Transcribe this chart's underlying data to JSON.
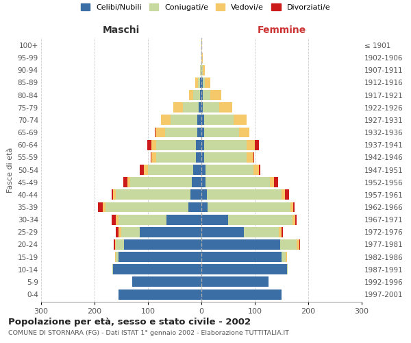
{
  "age_groups": [
    "0-4",
    "5-9",
    "10-14",
    "15-19",
    "20-24",
    "25-29",
    "30-34",
    "35-39",
    "40-44",
    "45-49",
    "50-54",
    "55-59",
    "60-64",
    "65-69",
    "70-74",
    "75-79",
    "80-84",
    "85-89",
    "90-94",
    "95-99",
    "100+"
  ],
  "birth_years": [
    "1997-2001",
    "1992-1996",
    "1987-1991",
    "1982-1986",
    "1977-1981",
    "1972-1976",
    "1967-1971",
    "1962-1966",
    "1957-1961",
    "1952-1956",
    "1947-1951",
    "1942-1946",
    "1937-1941",
    "1932-1936",
    "1927-1931",
    "1922-1926",
    "1917-1921",
    "1912-1916",
    "1907-1911",
    "1902-1906",
    "≤ 1901"
  ],
  "male_celibe": [
    155,
    130,
    165,
    155,
    145,
    115,
    65,
    25,
    20,
    18,
    15,
    10,
    10,
    8,
    8,
    5,
    3,
    2,
    0,
    0,
    0
  ],
  "male_coniugato": [
    0,
    0,
    2,
    5,
    15,
    35,
    90,
    155,
    140,
    115,
    85,
    75,
    75,
    60,
    50,
    30,
    12,
    5,
    2,
    0,
    0
  ],
  "male_vedovo": [
    0,
    0,
    0,
    2,
    2,
    5,
    5,
    5,
    5,
    5,
    8,
    8,
    8,
    18,
    18,
    18,
    8,
    4,
    1,
    0,
    0
  ],
  "male_divorziato": [
    0,
    0,
    0,
    0,
    2,
    5,
    8,
    8,
    3,
    8,
    8,
    2,
    8,
    1,
    0,
    0,
    0,
    0,
    0,
    0,
    0
  ],
  "female_celibe": [
    150,
    125,
    160,
    150,
    148,
    80,
    50,
    12,
    10,
    8,
    8,
    5,
    5,
    5,
    5,
    3,
    2,
    2,
    0,
    0,
    0
  ],
  "female_coniugata": [
    0,
    0,
    2,
    8,
    30,
    65,
    120,
    155,
    140,
    120,
    90,
    80,
    80,
    65,
    55,
    30,
    15,
    5,
    2,
    0,
    0
  ],
  "female_vedova": [
    0,
    0,
    0,
    2,
    5,
    5,
    5,
    5,
    6,
    8,
    10,
    12,
    15,
    20,
    25,
    25,
    20,
    10,
    5,
    2,
    1
  ],
  "female_divorziata": [
    0,
    0,
    0,
    0,
    2,
    2,
    3,
    3,
    8,
    8,
    2,
    2,
    8,
    0,
    0,
    0,
    0,
    0,
    0,
    0,
    0
  ],
  "color_celibe": "#3a6ea5",
  "color_coniugato": "#c8d9a0",
  "color_vedovo": "#f5c96a",
  "color_divorziato": "#cc1a1a",
  "title": "Popolazione per età, sesso e stato civile - 2002",
  "subtitle": "COMUNE DI STORNARA (FG) - Dati ISTAT 1° gennaio 2002 - Elaborazione TUTTITALIA.IT",
  "xlabel_left": "Maschi",
  "xlabel_right": "Femmine",
  "ylabel_left": "Fasce di età",
  "xlim": 300,
  "background_color": "#ffffff",
  "grid_color": "#cccccc",
  "maschi_color": "#333333",
  "femmine_color": "#cc3333"
}
